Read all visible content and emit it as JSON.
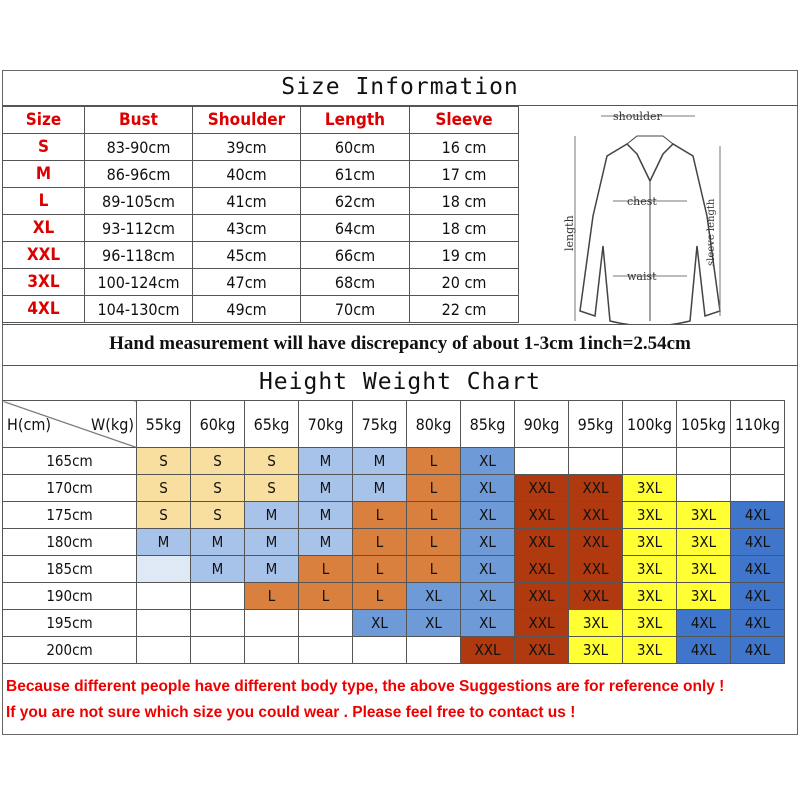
{
  "size_info": {
    "title": "Size Information",
    "headers": [
      "Size",
      "Bust",
      "Shoulder",
      "Length",
      "Sleeve"
    ],
    "rows": [
      [
        "S",
        "83-90cm",
        "39cm",
        "60cm",
        "16 cm"
      ],
      [
        "M",
        "86-96cm",
        "40cm",
        "61cm",
        "17 cm"
      ],
      [
        "L",
        "89-105cm",
        "41cm",
        "62cm",
        "18 cm"
      ],
      [
        "XL",
        "93-112cm",
        "43cm",
        "64cm",
        "18 cm"
      ],
      [
        "XXL",
        "96-118cm",
        "45cm",
        "66cm",
        "19 cm"
      ],
      [
        "3XL",
        "100-124cm",
        "47cm",
        "68cm",
        "20 cm"
      ],
      [
        "4XL",
        "104-130cm",
        "49cm",
        "70cm",
        "22 cm"
      ]
    ],
    "diagram_labels": {
      "shoulder": "shoulder",
      "chest": "chest",
      "waist": "waist",
      "length": "length",
      "sleeve_length": "sleeve length"
    },
    "note": "Hand measurement will have discrepancy of about 1-3cm  1inch=2.54cm"
  },
  "height_weight": {
    "title": "Height Weight Chart",
    "corner_h": "H(cm)",
    "corner_w": "W(kg)",
    "weights": [
      "55kg",
      "60kg",
      "65kg",
      "70kg",
      "75kg",
      "80kg",
      "85kg",
      "90kg",
      "95kg",
      "100kg",
      "105kg",
      "110kg"
    ],
    "rows": [
      {
        "height": "165cm",
        "cells": [
          "S",
          "S",
          "S",
          "M",
          "M",
          "L",
          "XL",
          "",
          "",
          "",
          "",
          ""
        ]
      },
      {
        "height": "170cm",
        "cells": [
          "S",
          "S",
          "S",
          "M",
          "M",
          "L",
          "XL",
          "XXL",
          "XXL",
          "3XL",
          "",
          ""
        ]
      },
      {
        "height": "175cm",
        "cells": [
          "S",
          "S",
          "M",
          "M",
          "L",
          "L",
          "XL",
          "XXL",
          "XXL",
          "3XL",
          "3XL",
          "4XL"
        ]
      },
      {
        "height": "180cm",
        "cells": [
          "M",
          "M",
          "M",
          "M",
          "L",
          "L",
          "XL",
          "XXL",
          "XXL",
          "3XL",
          "3XL",
          "4XL"
        ]
      },
      {
        "height": "185cm",
        "cells": [
          "-",
          "M",
          "M",
          "L",
          "L",
          "L",
          "XL",
          "XXL",
          "XXL",
          "3XL",
          "3XL",
          "4XL"
        ]
      },
      {
        "height": "190cm",
        "cells": [
          "",
          "",
          "L",
          "L",
          "L",
          "XL",
          "XL",
          "XXL",
          "XXL",
          "3XL",
          "3XL",
          "4XL"
        ]
      },
      {
        "height": "195cm",
        "cells": [
          "",
          "",
          "",
          "",
          "XL",
          "XL",
          "XL",
          "XXL",
          "3XL",
          "3XL",
          "4XL",
          "4XL"
        ]
      },
      {
        "height": "200cm",
        "cells": [
          "",
          "",
          "",
          "",
          "",
          "",
          "XXL",
          "XXL",
          "3XL",
          "3XL",
          "4XL",
          "4XL"
        ]
      }
    ],
    "colors": {
      "S": "#f8df9f",
      "M": "#a8c3ea",
      "L": "#d9803f",
      "XL": "#6f9ad8",
      "XXL": "#b0390f",
      "3XL": "#ffff33",
      "4XL": "#3f76cb",
      "-": "#dfe9f6"
    }
  },
  "footer": [
    "Because different people have different body type, the above Suggestions are for reference only !",
    "If you are not sure which size you could wear . Please feel free to contact us !"
  ]
}
